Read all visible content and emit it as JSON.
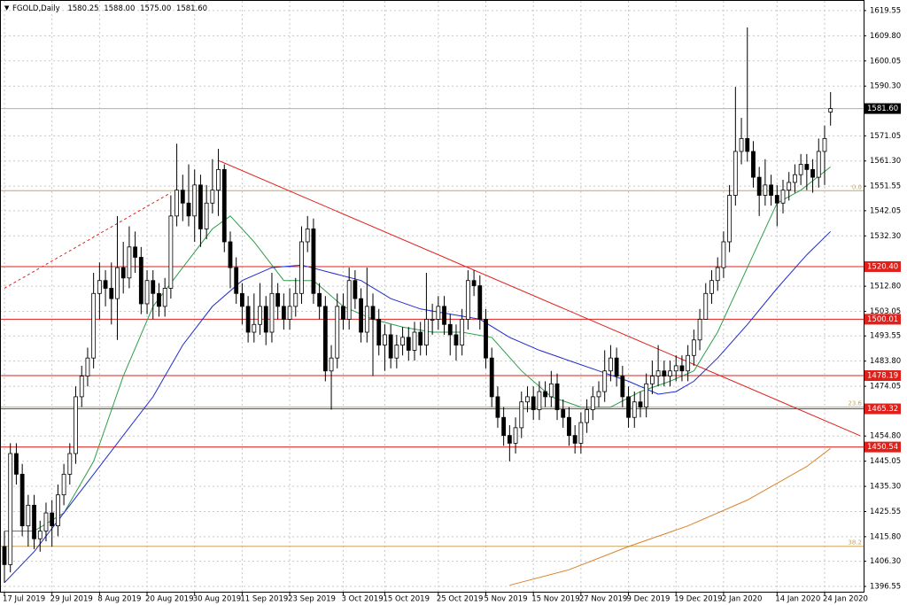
{
  "chart_data": {
    "type": "candlestick",
    "header": {
      "symbol": "FGOLD,Daily",
      "ohlc": [
        1580.25,
        {
          "value": 1588,
          "label": "1588.00"
        },
        {
          "value": 1575,
          "label": "1575.00"
        },
        {
          "value": 1581.6,
          "label": "1581.60"
        }
      ]
    },
    "categories": [
      "17 Jul 2019",
      null,
      null,
      null,
      null,
      null,
      null,
      null,
      "29 Jul 2019",
      null,
      null,
      null,
      null,
      null,
      null,
      null,
      "8 Aug 2019",
      null,
      null,
      null,
      null,
      null,
      null,
      null,
      "20 Aug 2019",
      null,
      null,
      null,
      null,
      null,
      null,
      null,
      "30 Aug 2019",
      null,
      null,
      null,
      null,
      null,
      null,
      null,
      "11 Sep 2019",
      null,
      null,
      null,
      null,
      null,
      null,
      null,
      "23 Sep 2019",
      null,
      null,
      null,
      null,
      null,
      null,
      null,
      null,
      "3 Oct 2019",
      null,
      null,
      null,
      null,
      null,
      null,
      "15 Oct 2019",
      null,
      null,
      null,
      null,
      null,
      null,
      null,
      null,
      "25 Oct 2019",
      null,
      null,
      null,
      null,
      null,
      null,
      null,
      "5 Nov 2019",
      null,
      null,
      null,
      null,
      null,
      null,
      null,
      "15 Nov 2019",
      null,
      null,
      null,
      null,
      null,
      null,
      null,
      "27 Nov 2019",
      null,
      null,
      null,
      null,
      null,
      null,
      null,
      "9 Dec 2019",
      null,
      null,
      null,
      null,
      null,
      null,
      null,
      "19 Dec 2019",
      null,
      null,
      null,
      null,
      null,
      null,
      null,
      "2 Jan 2020",
      null,
      null,
      null,
      null,
      null,
      null,
      null,
      null,
      "14 Jan 2020",
      null,
      null,
      null,
      null,
      null,
      null,
      null,
      "24 Jan 2020",
      null
    ],
    "open": [
      1412,
      1405,
      1448,
      1440,
      1420,
      1428,
      1415,
      1418,
      1425,
      1420,
      1432,
      1440,
      1448,
      1470,
      1478,
      1485,
      1510,
      1515,
      1512,
      1508,
      1520,
      1516,
      1528,
      1524,
      1506,
      1515,
      1510,
      1505,
      1512,
      1540,
      1550,
      1545,
      1540,
      1552,
      1535,
      1545,
      1550,
      1558,
      1530,
      1520,
      1510,
      1505,
      1495,
      1498,
      1505,
      1495,
      1510,
      1505,
      1500,
      1505,
      1510,
      1530,
      1535,
      1510,
      1505,
      1480,
      1485,
      1505,
      1500,
      1515,
      1508,
      1495,
      1505,
      1500,
      1490,
      1494,
      1485,
      1490,
      1493,
      1488,
      1495,
      1490,
      1500,
      1500,
      1505,
      1498,
      1494,
      1490,
      1500,
      1515,
      1513,
      1500,
      1485,
      1470,
      1462,
      1455,
      1452,
      1458,
      1468,
      1470,
      1465,
      1472,
      1470,
      1475,
      1465,
      1462,
      1455,
      1452,
      1460,
      1465,
      1470,
      1472,
      1480,
      1485,
      1478,
      1470,
      1462,
      1468,
      1466,
      1475,
      1478,
      1480,
      1478,
      1480,
      1482,
      1480,
      1486,
      1492,
      1500,
      1510,
      1515,
      1520,
      1530,
      1548,
      1565,
      1570,
      1565,
      1555,
      1548,
      1552,
      1548,
      1545,
      1550,
      1553,
      1556,
      1560,
      1558,
      1555,
      1565,
      1580.25
    ],
    "high": [
      1418,
      1452,
      1452,
      1444,
      1432,
      1432,
      1422,
      1429,
      1430,
      1436,
      1444,
      1452,
      1474,
      1482,
      1489,
      1518,
      1522,
      1519,
      1522,
      1540,
      1530,
      1536,
      1534,
      1528,
      1519,
      1519,
      1514,
      1516,
      1548,
      1568,
      1556,
      1560,
      1558,
      1556,
      1552,
      1562,
      1566,
      1560,
      1534,
      1524,
      1514,
      1509,
      1510,
      1514,
      1509,
      1518,
      1514,
      1510,
      1512,
      1516,
      1536,
      1540,
      1539,
      1514,
      1509,
      1490,
      1510,
      1510,
      1520,
      1519,
      1512,
      1520,
      1510,
      1504,
      1498,
      1498,
      1494,
      1497,
      1497,
      1499,
      1499,
      1518,
      1506,
      1509,
      1509,
      1502,
      1498,
      1504,
      1519,
      1519,
      1517,
      1504,
      1489,
      1474,
      1466,
      1459,
      1462,
      1472,
      1474,
      1474,
      1476,
      1476,
      1480,
      1479,
      1469,
      1466,
      1459,
      1464,
      1469,
      1474,
      1476,
      1488,
      1490,
      1489,
      1482,
      1474,
      1472,
      1472,
      1479,
      1484,
      1490,
      1484,
      1484,
      1486,
      1486,
      1490,
      1496,
      1504,
      1514,
      1519,
      1524,
      1534,
      1552,
      1590,
      1578,
      1613,
      1569,
      1559,
      1562,
      1556,
      1552,
      1554,
      1557,
      1560,
      1564,
      1564,
      1562,
      1570,
      1575,
      1588
    ],
    "low": [
      1398,
      1402,
      1436,
      1416,
      1412,
      1411,
      1410,
      1414,
      1412,
      1416,
      1428,
      1436,
      1444,
      1466,
      1474,
      1481,
      1500,
      1505,
      1498,
      1492,
      1510,
      1512,
      1518,
      1502,
      1502,
      1500,
      1501,
      1501,
      1508,
      1536,
      1538,
      1536,
      1530,
      1528,
      1531,
      1541,
      1540,
      1526,
      1512,
      1506,
      1498,
      1491,
      1491,
      1494,
      1490,
      1491,
      1500,
      1496,
      1496,
      1501,
      1506,
      1526,
      1506,
      1500,
      1476,
      1465,
      1481,
      1496,
      1496,
      1504,
      1491,
      1491,
      1478,
      1486,
      1480,
      1481,
      1481,
      1486,
      1484,
      1484,
      1486,
      1486,
      1494,
      1496,
      1494,
      1486,
      1484,
      1486,
      1496,
      1509,
      1496,
      1481,
      1466,
      1458,
      1451,
      1445,
      1448,
      1454,
      1464,
      1461,
      1461,
      1466,
      1466,
      1461,
      1458,
      1451,
      1448,
      1448,
      1456,
      1461,
      1466,
      1468,
      1476,
      1474,
      1466,
      1458,
      1458,
      1462,
      1462,
      1471,
      1474,
      1474,
      1474,
      1476,
      1476,
      1476,
      1482,
      1488,
      1500,
      1506,
      1511,
      1516,
      1526,
      1544,
      1560,
      1561,
      1551,
      1540,
      1544,
      1544,
      1536,
      1541,
      1546,
      1549,
      1552,
      1550,
      1549,
      1551,
      1552,
      1575
    ],
    "close": [
      1405,
      1448,
      1440,
      1420,
      1428,
      1415,
      1418,
      1425,
      1420,
      1432,
      1440,
      1448,
      1470,
      1478,
      1485,
      1510,
      1515,
      1512,
      1508,
      1520,
      1516,
      1528,
      1524,
      1506,
      1515,
      1510,
      1505,
      1512,
      1540,
      1550,
      1545,
      1540,
      1552,
      1535,
      1545,
      1550,
      1558,
      1530,
      1520,
      1510,
      1505,
      1495,
      1498,
      1505,
      1495,
      1510,
      1505,
      1500,
      1505,
      1510,
      1530,
      1535,
      1510,
      1505,
      1480,
      1485,
      1505,
      1500,
      1515,
      1508,
      1495,
      1505,
      1500,
      1490,
      1494,
      1485,
      1490,
      1493,
      1488,
      1495,
      1490,
      1500,
      1500,
      1505,
      1498,
      1494,
      1490,
      1500,
      1515,
      1513,
      1500,
      1485,
      1470,
      1462,
      1455,
      1452,
      1458,
      1468,
      1470,
      1465,
      1472,
      1470,
      1475,
      1465,
      1462,
      1455,
      1452,
      1460,
      1465,
      1470,
      1472,
      1480,
      1485,
      1478,
      1470,
      1462,
      1468,
      1466,
      1475,
      1478,
      1480,
      1478,
      1480,
      1482,
      1480,
      1486,
      1492,
      1500,
      1510,
      1515,
      1520,
      1530,
      1548,
      1565,
      1570,
      1565,
      1555,
      1548,
      1552,
      1548,
      1545,
      1550,
      1553,
      1556,
      1560,
      1558,
      1555,
      1565,
      1570,
      1581.6
    ],
    "ylim": [
      1394.5,
      1623.3
    ],
    "yticks": [
      1619.55,
      {
        "value": 1609.8,
        "label": "1609.80"
      },
      1600.05,
      {
        "value": 1590.3,
        "label": "1590.30"
      },
      1571.05,
      {
        "value": 1561.3,
        "label": "1561.30"
      },
      1551.55,
      1542.05,
      {
        "value": 1532.3,
        "label": "1532.30"
      },
      {
        "value": 1512.8,
        "label": "1512.80"
      },
      1503.05,
      1493.55,
      {
        "value": 1483.8,
        "label": "1483.80"
      },
      1474.05,
      {
        "value": 1454.8,
        "label": "1454.80"
      },
      1445.05,
      {
        "value": 1435.3,
        "label": "1435.30"
      },
      1425.55,
      {
        "value": 1415.8,
        "label": "1415.80"
      },
      {
        "value": 1406.3,
        "label": "1406.30"
      },
      1396.55
    ],
    "grid": true,
    "moving_averages": [
      {
        "color": "#2e9e4a",
        "x": [
          0,
          5,
          10,
          15,
          20,
          25,
          30,
          35,
          38,
          42,
          47,
          52,
          57,
          62,
          67,
          72,
          77,
          82,
          87,
          92,
          97,
          102,
          107,
          112,
          116,
          120,
          125,
          130,
          134,
          139
        ],
        "values": [
          1418,
          1418,
          1425,
          1445,
          1478,
          1505,
          1520,
          1535,
          1540,
          1530,
          1515,
          1515,
          1505,
          1500,
          1497,
          1495,
          1495,
          1493,
          1480,
          1470,
          1466,
          1466,
          1472,
          1476,
          1480,
          1495,
          1520,
          1545,
          1550,
          1559
        ]
      },
      {
        "color": "#1f2ad0",
        "x": [
          0,
          5,
          10,
          15,
          20,
          25,
          30,
          35,
          40,
          45,
          50,
          55,
          60,
          65,
          70,
          75,
          80,
          85,
          90,
          95,
          100,
          105,
          110,
          113,
          116,
          120,
          125,
          130,
          135,
          139
        ],
        "values": [
          1398,
          1410,
          1425,
          1440,
          1455,
          1470,
          1490,
          1505,
          1515,
          1520,
          1521,
          1518,
          1515,
          1508,
          1504,
          1502,
          1500,
          1493,
          1488,
          1484,
          1480,
          1476,
          1471,
          1472,
          1476,
          1485,
          1498,
          1512,
          1525,
          1534
        ]
      },
      {
        "color": "#d9822b",
        "x": [
          85,
          95,
          105,
          115,
          125,
          135,
          139
        ],
        "values": [
          1397,
          1403,
          1412,
          1420,
          1430,
          1443,
          1450
        ]
      }
    ],
    "levels": [
      {
        "value": 1520.4,
        "label": "1520.40"
      },
      1500.01,
      1478.19,
      1465.32,
      1450.54
    ],
    "level_color": "#e0201b",
    "fib_color": "#c9a55a",
    "fib_levels": [
      {
        "value": 1549.8,
        "label": "0.0"
      },
      {
        "value": 1466,
        "label": "23.6"
      },
      {
        "value": 1412.1,
        "label": "38.2"
      }
    ],
    "trendlines": [
      {
        "color": "#e0201b",
        "dashed": false,
        "x": [
          36,
          144
        ],
        "values": [
          1561.5,
          1454.9
        ]
      },
      {
        "color": "#e0201b",
        "dashed": true,
        "x": [
          0,
          28
        ],
        "values": [
          1512,
          1549
        ]
      }
    ]
  }
}
